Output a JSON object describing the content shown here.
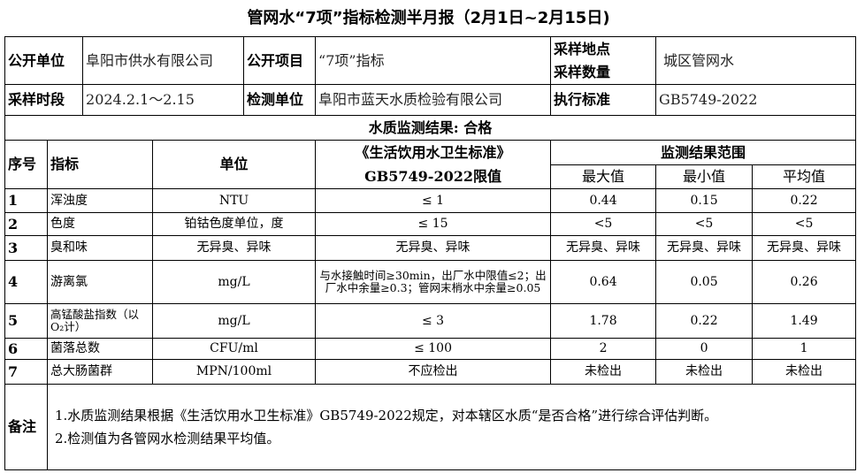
{
  "title": "管网水“7项”指标检测半月报（2月1日~2月15日)",
  "info": {
    "publisher_label": "公开单位",
    "publisher": "阜阳市供水有限公司",
    "item_label": "公开项目",
    "item": "“7项”指标",
    "site_label": "采样地点\n采样数量",
    "site": "城区管网水",
    "period_label": "采样时段",
    "period": "2024.2.1～2.15",
    "lab_label": "检测单位",
    "lab": "阜阳市蓝天水质检验有限公司",
    "standard_label": "执行标准",
    "standard": "GB5749-2022"
  },
  "result": "水质监测结果: 合格",
  "headers": {
    "no": "序号",
    "indicator": "指标",
    "unit": "单位",
    "limit": "《生活饮用水卫生标准》\nGB5749-2022限值",
    "range": "监测结果范围",
    "max": "最大值",
    "min": "最小值",
    "avg": "平均值"
  },
  "rows": [
    {
      "no": "1",
      "indicator": "浑浊度",
      "unit": "NTU",
      "limit": "≤ 1",
      "max": "0.44",
      "min": "0.15",
      "avg": "0.22"
    },
    {
      "no": "2",
      "indicator": "色度",
      "unit": "铂钴色度单位，度",
      "limit": "≤ 15",
      "max": "<5",
      "min": "<5",
      "avg": "<5"
    },
    {
      "no": "3",
      "indicator": "臭和味",
      "unit": "无异臭、异味",
      "limit": "无异臭、异味",
      "max": "无异臭、异味",
      "min": "无异臭、异味",
      "avg": "无异臭、异味"
    },
    {
      "no": "4",
      "indicator": "游离氯",
      "unit": "mg/L",
      "limit": "与水接触时间≥30min，出厂水中限值≤2；出厂水中余量≥0.3；管网末梢水中余量≥0.05",
      "max": "0.64",
      "min": "0.05",
      "avg": "0.26"
    },
    {
      "no": "5",
      "indicator": "高锰酸盐指数（以O₂计）",
      "unit": "mg/L",
      "limit": "≤ 3",
      "max": "1.78",
      "min": "0.22",
      "avg": "1.49"
    },
    {
      "no": "6",
      "indicator": "菌落总数",
      "unit": "CFU/ml",
      "limit": "≤ 100",
      "max": "2",
      "min": "0",
      "avg": "1"
    },
    {
      "no": "7",
      "indicator": "总大肠菌群",
      "unit": "MPN/100ml",
      "limit": "不应检出",
      "max": "未检出",
      "min": "未检出",
      "avg": "未检出"
    }
  ],
  "notes": {
    "label": "备注",
    "lines": [
      "1.水质监测结果根据《生活饮用水卫生标准》GB5749-2022规定，对本辖区水质“是否合格”进行综合评估判断。",
      "2.检测值为各管网水检测结果平均值。"
    ]
  }
}
